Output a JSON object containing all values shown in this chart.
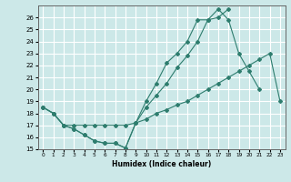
{
  "xlabel": "Humidex (Indice chaleur)",
  "bg_color": "#cce8e8",
  "grid_color": "#ffffff",
  "line_color": "#2e7d6e",
  "xlim": [
    -0.5,
    23.5
  ],
  "ylim": [
    15,
    27
  ],
  "yticks": [
    15,
    16,
    17,
    18,
    19,
    20,
    21,
    22,
    23,
    24,
    25,
    26
  ],
  "xticks": [
    0,
    1,
    2,
    3,
    4,
    5,
    6,
    7,
    8,
    9,
    10,
    11,
    12,
    13,
    14,
    15,
    16,
    17,
    18,
    19,
    20,
    21,
    22,
    23
  ],
  "line1_x": [
    0,
    1,
    2,
    3,
    4,
    5,
    6,
    7,
    8,
    9,
    10,
    11,
    12,
    13,
    14,
    15,
    16,
    17,
    18,
    19,
    20,
    21
  ],
  "line1_y": [
    18.5,
    18.0,
    17.0,
    16.7,
    16.2,
    15.7,
    15.5,
    15.5,
    15.1,
    17.2,
    19.0,
    20.5,
    22.2,
    23.0,
    24.0,
    25.8,
    25.8,
    26.7,
    25.8,
    23.0,
    21.5,
    20.0
  ],
  "line2_x": [
    0,
    1,
    2,
    3,
    4,
    5,
    6,
    7,
    8,
    9,
    10,
    11,
    12,
    13,
    14,
    15,
    16,
    17,
    18,
    19,
    20,
    21,
    22,
    23
  ],
  "line2_y": [
    18.5,
    18.0,
    17.0,
    17.0,
    17.0,
    17.0,
    17.0,
    17.0,
    17.0,
    17.2,
    17.5,
    18.0,
    18.3,
    18.7,
    19.0,
    19.5,
    20.0,
    20.5,
    21.0,
    21.5,
    22.0,
    22.5,
    23.0,
    19.0
  ],
  "line3_x": [
    0,
    1,
    2,
    3,
    4,
    5,
    6,
    7,
    8,
    9,
    10,
    11,
    12,
    13,
    14,
    15,
    16,
    17,
    18
  ],
  "line3_y": [
    18.5,
    18.0,
    17.0,
    16.7,
    16.2,
    15.7,
    15.5,
    15.5,
    15.1,
    17.2,
    18.5,
    19.5,
    20.5,
    21.8,
    22.8,
    24.0,
    25.8,
    26.0,
    26.7
  ]
}
